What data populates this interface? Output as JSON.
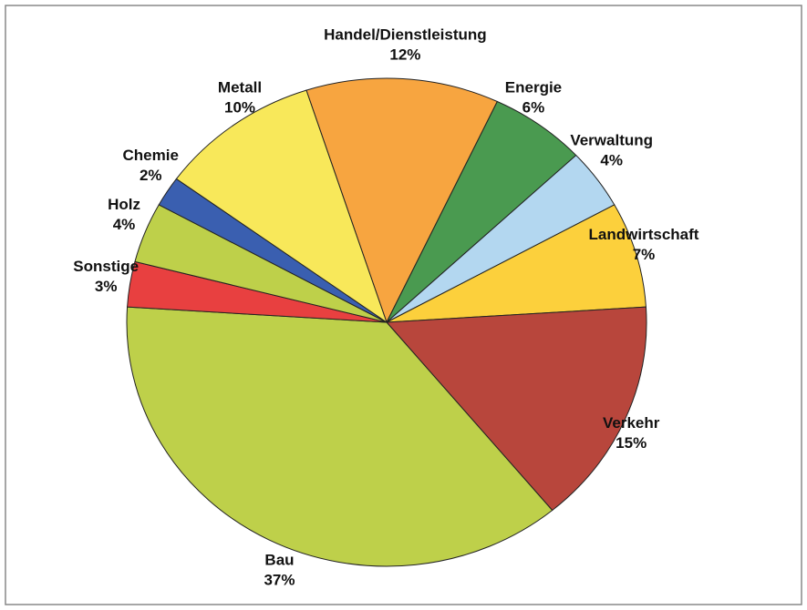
{
  "chart_data": {
    "type": "pie",
    "categories": [
      "Handel/Dienstleistung",
      "Energie",
      "Verwaltung",
      "Landwirtschaft",
      "Verkehr",
      "Bau",
      "Sonstige",
      "Holz",
      "Chemie",
      "Metall"
    ],
    "values": [
      12,
      6,
      4,
      7,
      15,
      37,
      3,
      4,
      2,
      10
    ],
    "value_labels": [
      "12%",
      "6%",
      "4%",
      "7%",
      "15%",
      "37%",
      "3%",
      "4%",
      "2%",
      "10%"
    ],
    "colors": [
      "#f7a540",
      "#4a9a50",
      "#b3d7f0",
      "#fcd03c",
      "#b8463c",
      "#bed04a",
      "#e84040",
      "#bed04a",
      "#3a5fb0",
      "#f8e85a"
    ]
  }
}
